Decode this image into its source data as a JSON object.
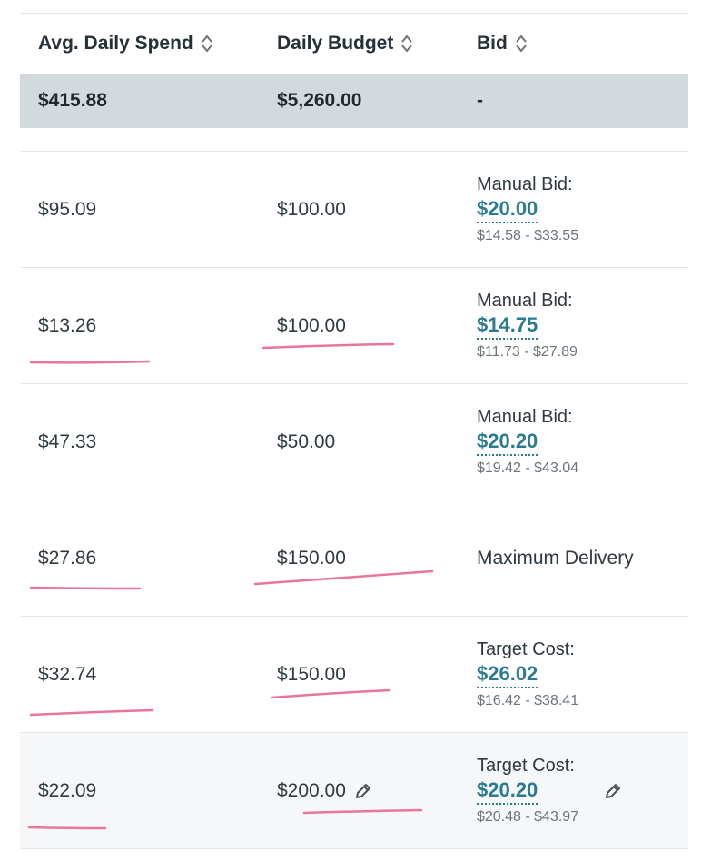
{
  "columns": [
    {
      "label": "Avg. Daily Spend"
    },
    {
      "label": "Daily Budget"
    },
    {
      "label": "Bid"
    }
  ],
  "totals": {
    "spend": "$415.88",
    "budget": "$5,260.00",
    "bid": "-"
  },
  "rows": [
    {
      "spend": "$95.09",
      "budget": "$100.00",
      "bid_label": "Manual Bid:",
      "bid_value": "$20.00",
      "bid_range": "$14.58 - $33.55"
    },
    {
      "spend": "$13.26",
      "budget": "$100.00",
      "bid_label": "Manual Bid:",
      "bid_value": "$14.75",
      "bid_range": "$11.73 - $27.89"
    },
    {
      "spend": "$47.33",
      "budget": "$50.00",
      "bid_label": "Manual Bid:",
      "bid_value": "$20.20",
      "bid_range": "$19.42 - $43.04"
    },
    {
      "spend": "$27.86",
      "budget": "$150.00",
      "bid_text": "Maximum Delivery"
    },
    {
      "spend": "$32.74",
      "budget": "$150.00",
      "bid_label": "Target Cost:",
      "bid_value": "$26.02",
      "bid_range": "$16.42 - $38.41"
    },
    {
      "spend": "$22.09",
      "budget": "$200.00",
      "bid_label": "Target Cost:",
      "bid_value": "$20.20",
      "bid_range": "$20.48 - $43.97"
    }
  ],
  "icons": {
    "sort": "sort-arrows-icon",
    "edit": "pencil-icon"
  },
  "colors": {
    "accent": "#2a7b8f",
    "total_bg": "#d3dade",
    "annotation": "#e8769a"
  }
}
